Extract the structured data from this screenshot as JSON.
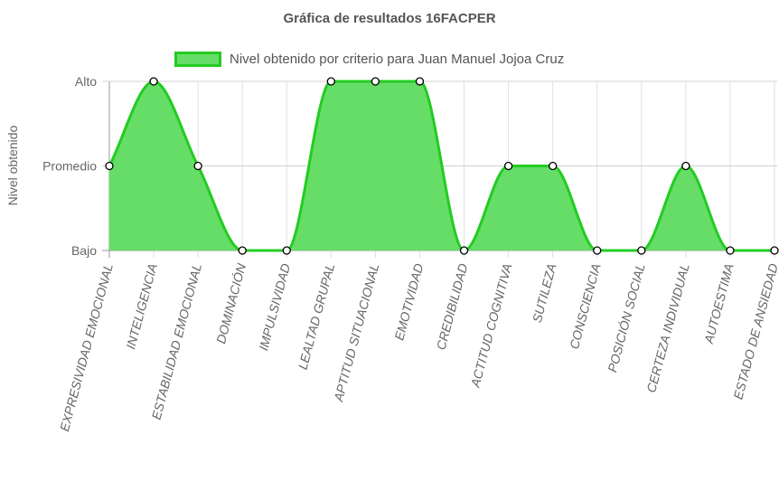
{
  "chart_data": {
    "type": "area",
    "title": "Gráfica de resultados 16FACPER",
    "ylabel": "Nivel obtenido",
    "xlabel": "",
    "y_ticks": [
      "Bajo",
      "Promedio",
      "Alto"
    ],
    "ylim": [
      0,
      2
    ],
    "categories": [
      "EXPRESIVIDAD EMOCIONAL",
      "INTELIGENCIA",
      "ESTABILIDAD EMOCIONAL",
      "DOMINACIÓN",
      "IMPULSIVIDAD",
      "LEALTAD GRUPAL",
      "APTITUD SITUACIONAL",
      "EMOTIVIDAD",
      "CREDIBILIDAD",
      "ACTITUD COGNITIVA",
      "SUTILEZA",
      "CONSCIENCIA",
      "POSICIÓN SOCIAL",
      "CERTEZA INDIVIDUAL",
      "AUTOESTIMA",
      "ESTADO DE ANSIEDAD"
    ],
    "series": [
      {
        "name": "Nivel obtenido por criterio para Juan Manuel Jojoa Cruz",
        "values": [
          1,
          2,
          1,
          0,
          0,
          2,
          2,
          2,
          0,
          1,
          1,
          0,
          0,
          1,
          0,
          0
        ]
      }
    ],
    "legend_position": "top",
    "grid": true,
    "colors": {
      "fill": "#66dd66",
      "line": "#22cc22",
      "point_fill": "#ffffff",
      "point_stroke": "#000000"
    }
  }
}
